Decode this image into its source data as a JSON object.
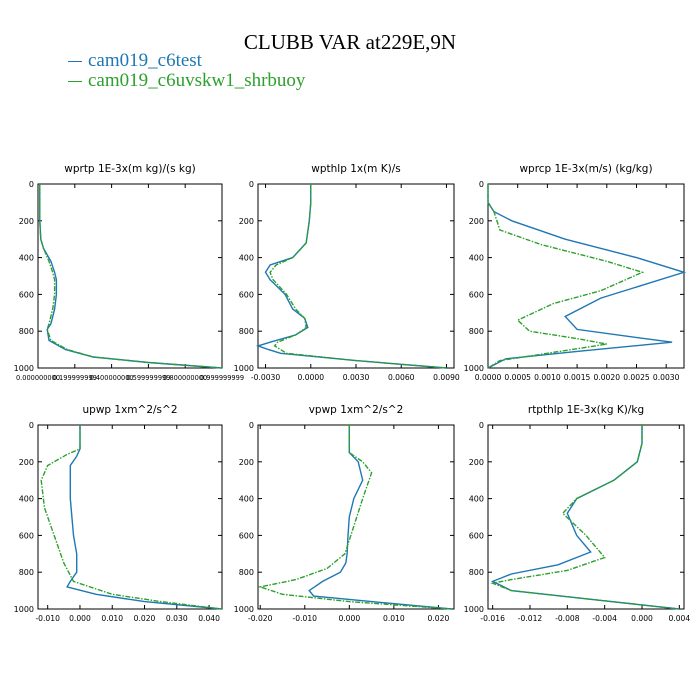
{
  "header": {
    "title": "CLUBB VAR at229E,9N",
    "legend": [
      {
        "label": "cam019_c6test",
        "color": "#1f77b4"
      },
      {
        "label": "cam019_c6uvskw1_shrbuoy",
        "color": "#2ca02c"
      }
    ]
  },
  "colors": {
    "series1": "#1f77b4",
    "series2": "#2ca02c"
  },
  "chart_data": [
    {
      "type": "line",
      "title": "wprtp  1E-3x(m kg)/(s kg)",
      "xlim": [
        0,
        1
      ],
      "ylim": [
        1000,
        0
      ],
      "xticks": [
        0,
        0.2,
        0.4,
        0.6,
        0.8,
        1.0
      ],
      "xticklabels": [
        "0.000000000",
        "0.199999999",
        "0.400000000",
        "0.599999999",
        "0.800000000",
        "0.999999999"
      ],
      "yticks": [
        0,
        200,
        400,
        600,
        800,
        1000
      ],
      "series": [
        {
          "x": [
            0.01,
            0.01,
            0.01,
            0.015,
            0.03,
            0.07,
            0.09,
            0.1,
            0.1,
            0.09,
            0.07,
            0.05,
            0.06,
            0.15,
            0.3,
            0.6,
            1.0
          ],
          "y": [
            0,
            100,
            200,
            300,
            350,
            420,
            480,
            520,
            600,
            680,
            760,
            790,
            850,
            900,
            940,
            970,
            1000
          ]
        },
        {
          "x": [
            0.01,
            0.01,
            0.01,
            0.015,
            0.03,
            0.06,
            0.08,
            0.09,
            0.09,
            0.08,
            0.06,
            0.05,
            0.07,
            0.16,
            0.3,
            0.6,
            1.0
          ],
          "y": [
            0,
            100,
            200,
            300,
            350,
            420,
            480,
            520,
            600,
            680,
            760,
            790,
            850,
            900,
            940,
            970,
            1000
          ]
        }
      ]
    },
    {
      "type": "line",
      "title": "wpthlp  1x(m K)/s",
      "xlim": [
        -0.0035,
        0.0095
      ],
      "ylim": [
        1000,
        0
      ],
      "xticks": [
        -0.003,
        0.0,
        0.003,
        0.006,
        0.009
      ],
      "xticklabels": [
        "-0.0030",
        "0.0000",
        "0.0030",
        "0.0060",
        "0.0090"
      ],
      "yticks": [
        0,
        200,
        400,
        600,
        800,
        1000
      ],
      "series": [
        {
          "x": [
            0.0,
            0.0,
            -0.0001,
            -0.0003,
            -0.0012,
            -0.0027,
            -0.003,
            -0.0027,
            -0.0017,
            -0.0012,
            -0.0004,
            -0.0002,
            -0.001,
            -0.0027,
            -0.0035,
            -0.0028,
            -0.002,
            0.003,
            0.009
          ],
          "y": [
            0,
            100,
            200,
            320,
            400,
            440,
            480,
            520,
            600,
            680,
            730,
            780,
            820,
            860,
            880,
            900,
            920,
            960,
            1000
          ]
        },
        {
          "x": [
            0.0,
            0.0,
            -0.0001,
            -0.0003,
            -0.0012,
            -0.0023,
            -0.0027,
            -0.0025,
            -0.0016,
            -0.001,
            -0.0004,
            -0.0003,
            -0.001,
            -0.0022,
            -0.0024,
            -0.002,
            -0.0016,
            0.003,
            0.009
          ],
          "y": [
            0,
            100,
            200,
            320,
            400,
            440,
            480,
            520,
            600,
            680,
            730,
            780,
            820,
            860,
            880,
            900,
            920,
            960,
            1000
          ]
        }
      ]
    },
    {
      "type": "line",
      "title": "wprcp  1E-3x(m/s) (kg/kg)",
      "xlim": [
        0,
        0.0033
      ],
      "ylim": [
        1000,
        0
      ],
      "xticks": [
        0,
        0.0005,
        0.001,
        0.0015,
        0.002,
        0.0025,
        0.003
      ],
      "xticklabels": [
        "0.0000",
        "0.0005",
        "0.0010",
        "0.0015",
        "0.0020",
        "0.0025",
        "0.0030"
      ],
      "yticks": [
        0,
        200,
        400,
        600,
        800,
        1000
      ],
      "series": [
        {
          "x": [
            0.0,
            0.0,
            0.0001,
            0.0004,
            0.0013,
            0.0025,
            0.0033,
            0.0026,
            0.0019,
            0.0013,
            0.0015,
            0.0024,
            0.0031,
            0.0015,
            0.0003,
            0.0
          ],
          "y": [
            0,
            100,
            150,
            200,
            300,
            400,
            480,
            550,
            620,
            720,
            790,
            830,
            860,
            910,
            950,
            1000
          ]
        },
        {
          "x": [
            0.0,
            0.0,
            0.0001,
            0.0002,
            0.0009,
            0.002,
            0.0026,
            0.0019,
            0.0011,
            0.0005,
            0.0007,
            0.0015,
            0.002,
            0.001,
            0.0002,
            0.0
          ],
          "y": [
            0,
            100,
            150,
            250,
            330,
            420,
            480,
            580,
            650,
            740,
            800,
            840,
            870,
            920,
            960,
            1000
          ]
        }
      ]
    },
    {
      "type": "line",
      "title": "upwp  1xm^2/s^2",
      "xlim": [
        -0.013,
        0.044
      ],
      "ylim": [
        1000,
        0
      ],
      "xticks": [
        -0.01,
        0.0,
        0.01,
        0.02,
        0.03,
        0.04
      ],
      "xticklabels": [
        "-0.010",
        "0.000",
        "0.010",
        "0.020",
        "0.030",
        "0.040"
      ],
      "yticks": [
        0,
        200,
        400,
        600,
        800,
        1000
      ],
      "series": [
        {
          "x": [
            0.0,
            0.0,
            0.0,
            -0.001,
            -0.003,
            -0.003,
            -0.002,
            -0.001,
            -0.001,
            -0.003,
            -0.004,
            0.005,
            0.02,
            0.044
          ],
          "y": [
            0,
            100,
            130,
            170,
            220,
            400,
            600,
            700,
            800,
            850,
            880,
            920,
            960,
            1000
          ]
        },
        {
          "x": [
            0.0,
            0.0,
            0.0,
            -0.004,
            -0.01,
            -0.012,
            -0.011,
            -0.009,
            -0.007,
            -0.005,
            -0.002,
            0.01,
            0.025,
            0.044
          ],
          "y": [
            0,
            100,
            130,
            160,
            220,
            300,
            450,
            550,
            650,
            750,
            850,
            920,
            960,
            1000
          ]
        }
      ]
    },
    {
      "type": "line",
      "title": "vpwp  1xm^2/s^2",
      "xlim": [
        -0.0205,
        0.0235
      ],
      "ylim": [
        1000,
        0
      ],
      "xticks": [
        -0.02,
        -0.01,
        0.0,
        0.01,
        0.02
      ],
      "xticklabels": [
        "-0.020",
        "-0.010",
        "0.000",
        "0.010",
        "0.020"
      ],
      "yticks": [
        0,
        200,
        400,
        600,
        800,
        1000
      ],
      "series": [
        {
          "x": [
            0.0,
            0.0,
            0.0,
            0.002,
            0.003,
            0.001,
            0.0,
            -0.0003,
            -0.0005,
            -0.0008,
            -0.002,
            -0.006,
            -0.009,
            -0.008,
            0.005,
            0.023
          ],
          "y": [
            0,
            100,
            150,
            200,
            300,
            400,
            500,
            600,
            700,
            750,
            800,
            850,
            900,
            930,
            960,
            1000
          ]
        },
        {
          "x": [
            0.0,
            0.0,
            0.0,
            0.003,
            0.005,
            0.003,
            0.001,
            -0.001,
            -0.005,
            -0.012,
            -0.02,
            -0.015,
            0.0,
            0.023
          ],
          "y": [
            0,
            100,
            150,
            200,
            260,
            400,
            550,
            700,
            780,
            840,
            880,
            920,
            960,
            1000
          ]
        }
      ]
    },
    {
      "type": "line",
      "title": "rtpthlp  1E-3x(kg K)/kg",
      "xlim": [
        -0.0165,
        0.0045
      ],
      "ylim": [
        1000,
        0
      ],
      "xticks": [
        -0.016,
        -0.012,
        -0.008,
        -0.004,
        0.0,
        0.004
      ],
      "xticklabels": [
        "-0.016",
        "-0.012",
        "-0.008",
        "-0.004",
        "0.000",
        "0.004"
      ],
      "yticks": [
        0,
        200,
        400,
        600,
        800,
        1000
      ],
      "series": [
        {
          "x": [
            0.0,
            0.0,
            -0.0005,
            -0.003,
            -0.007,
            -0.008,
            -0.007,
            -0.0055,
            -0.009,
            -0.014,
            -0.016,
            -0.014,
            -0.005,
            0.004
          ],
          "y": [
            0,
            100,
            200,
            300,
            400,
            480,
            600,
            690,
            760,
            810,
            850,
            900,
            950,
            1000
          ]
        },
        {
          "x": [
            0.0,
            0.0,
            -0.0005,
            -0.003,
            -0.007,
            -0.0085,
            -0.006,
            -0.004,
            -0.008,
            -0.014,
            -0.016,
            -0.014,
            -0.005,
            0.004
          ],
          "y": [
            0,
            100,
            200,
            300,
            400,
            480,
            600,
            720,
            790,
            840,
            860,
            900,
            950,
            1000
          ]
        }
      ]
    }
  ]
}
